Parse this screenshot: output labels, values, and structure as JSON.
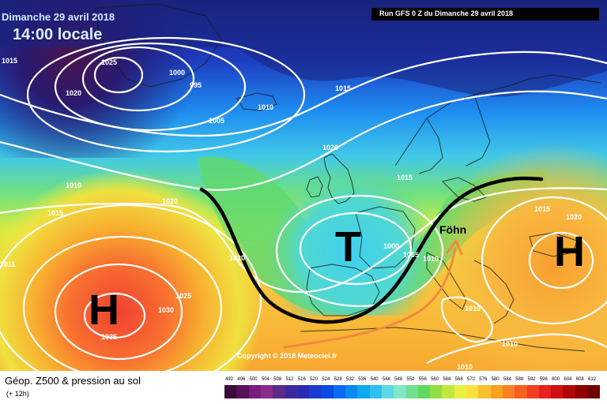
{
  "header": {
    "date_line": "Dimanche 29 avril 2018",
    "local_time": "14:00 locale",
    "run_line": "Run GFS 0 Z du Dimanche 29 avril 2018"
  },
  "annotations": {
    "foehn": "Föhn",
    "trough_letter": "T",
    "high_letter_west": "H",
    "high_letter_east": "H",
    "copyright": "Copyright © 2018 Meteociel.fr"
  },
  "isobar_labels": [
    {
      "id": "l1015a",
      "text": "1015"
    },
    {
      "id": "l1025a",
      "text": "1025"
    },
    {
      "id": "l1020a",
      "text": "1020"
    },
    {
      "id": "l1000a",
      "text": "1000"
    },
    {
      "id": "l995",
      "text": "995"
    },
    {
      "id": "l1005",
      "text": "1005"
    },
    {
      "id": "l1010a",
      "text": "1010"
    },
    {
      "id": "l1015b",
      "text": "1015"
    },
    {
      "id": "l1020b",
      "text": "1020"
    },
    {
      "id": "l1010b",
      "text": "1010"
    },
    {
      "id": "l1015c",
      "text": "1015"
    },
    {
      "id": "l1020c",
      "text": "1020"
    },
    {
      "id": "l1015d",
      "text": "1015"
    },
    {
      "id": "l1015e",
      "text": "1015"
    },
    {
      "id": "l1020d",
      "text": "1020"
    },
    {
      "id": "l1011",
      "text": "1011"
    },
    {
      "id": "l1020e",
      "text": "1020"
    },
    {
      "id": "l1000b",
      "text": "1000"
    },
    {
      "id": "l1005b",
      "text": "1005"
    },
    {
      "id": "l1010c",
      "text": "1010"
    },
    {
      "id": "l1025b",
      "text": "1025"
    },
    {
      "id": "l1030",
      "text": "1030"
    },
    {
      "id": "l1035",
      "text": "1035"
    },
    {
      "id": "l1010d",
      "text": "1010"
    },
    {
      "id": "l1010e",
      "text": "1010"
    },
    {
      "id": "l1010f",
      "text": "1010"
    }
  ],
  "footer": {
    "title": "Géop. Z500 & pression au sol",
    "subtitle": "(+ 12h)"
  },
  "legend": {
    "labels": [
      "492",
      "496",
      "500",
      "504",
      "508",
      "512",
      "516",
      "520",
      "524",
      "528",
      "532",
      "536",
      "540",
      "544",
      "548",
      "552",
      "556",
      "560",
      "564",
      "568",
      "572",
      "576",
      "580",
      "584",
      "588",
      "592",
      "596",
      "600",
      "604",
      "608",
      "612"
    ],
    "colors": [
      "#3a0a3a",
      "#5a0f5a",
      "#7a1a7a",
      "#8a2a8a",
      "#5a2a8a",
      "#3a2aa0",
      "#2a2ab8",
      "#1a3ad0",
      "#0a4ae0",
      "#0a6af0",
      "#0a8af0",
      "#10a8f0",
      "#30c0f0",
      "#60d8e8",
      "#80e8c8",
      "#70e090",
      "#60d860",
      "#90e040",
      "#c0e840",
      "#e8f040",
      "#f8e040",
      "#f8c030",
      "#f8a020",
      "#f88020",
      "#f86020",
      "#f04020",
      "#e82020",
      "#d01010",
      "#b00808",
      "#900000",
      "#700000"
    ]
  },
  "map_colors": {
    "deep_purple": "#4a1450",
    "navy": "#1a237e",
    "blue": "#1e40c8",
    "sky": "#1e90ff",
    "cyan": "#30d0f0",
    "green": "#50d060",
    "yellow": "#f0f040",
    "orange": "#f8a830",
    "red": "#f04030",
    "land_line": "#1a1a1a",
    "isobar": "#ffffff",
    "arrow": "#f08a40"
  }
}
